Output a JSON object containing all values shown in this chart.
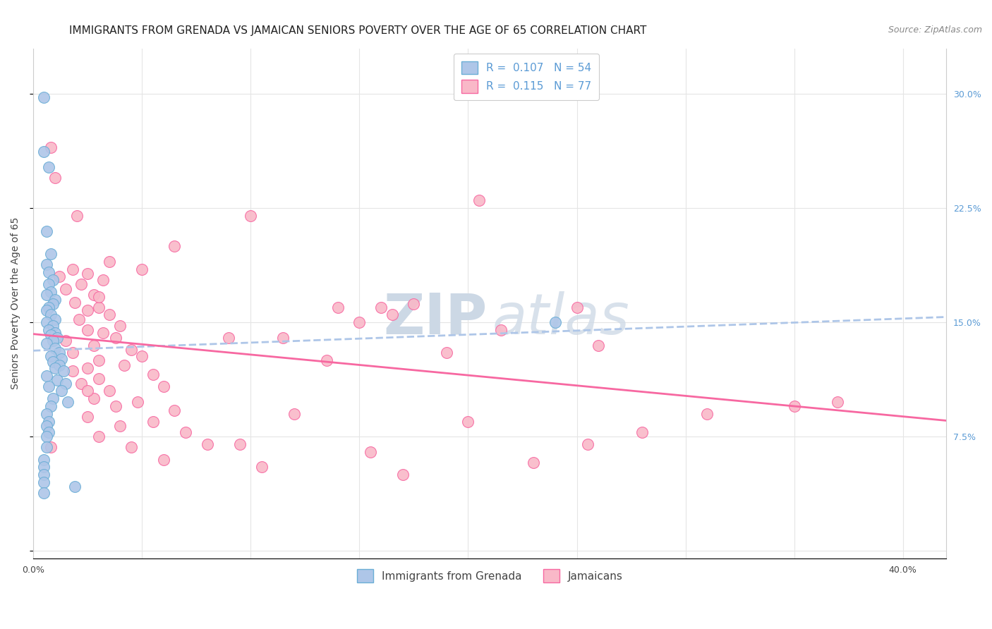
{
  "title": "IMMIGRANTS FROM GRENADA VS JAMAICAN SENIORS POVERTY OVER THE AGE OF 65 CORRELATION CHART",
  "source": "Source: ZipAtlas.com",
  "ylabel": "Seniors Poverty Over the Age of 65",
  "y_tick_vals": [
    0.0,
    0.075,
    0.15,
    0.225,
    0.3
  ],
  "y_tick_labels": [
    "",
    "7.5%",
    "15.0%",
    "22.5%",
    "30.0%"
  ],
  "x_tick_vals": [
    0.0,
    0.05,
    0.1,
    0.15,
    0.2,
    0.25,
    0.3,
    0.35,
    0.4
  ],
  "xlim": [
    0.0,
    0.42
  ],
  "ylim": [
    -0.005,
    0.33
  ],
  "grenada_color": "#aec6e8",
  "grenada_edge": "#6baed6",
  "jamaican_color": "#f9b8c8",
  "jamaican_edge": "#f768a1",
  "grenada_trend_color": "#aec6e8",
  "jamaican_trend_color": "#f768a1",
  "R_grenada": 0.107,
  "N_grenada": 54,
  "R_jamaican": 0.115,
  "N_jamaican": 77,
  "background_color": "#ffffff",
  "grid_color": "#e5e5e5",
  "watermark_color": "#ccd8e5",
  "title_fontsize": 11,
  "ylabel_fontsize": 10,
  "tick_fontsize": 9,
  "legend_fontsize": 11,
  "source_fontsize": 9,
  "scatter_size": 130,
  "grenada_x": [
    0.005,
    0.005,
    0.007,
    0.006,
    0.008,
    0.006,
    0.007,
    0.009,
    0.007,
    0.008,
    0.006,
    0.01,
    0.009,
    0.007,
    0.006,
    0.008,
    0.01,
    0.006,
    0.009,
    0.007,
    0.01,
    0.008,
    0.011,
    0.009,
    0.006,
    0.01,
    0.012,
    0.008,
    0.013,
    0.009,
    0.012,
    0.01,
    0.014,
    0.006,
    0.011,
    0.015,
    0.007,
    0.013,
    0.009,
    0.016,
    0.008,
    0.006,
    0.007,
    0.006,
    0.007,
    0.006,
    0.006,
    0.005,
    0.005,
    0.005,
    0.005,
    0.019,
    0.005,
    0.24
  ],
  "grenada_y": [
    0.298,
    0.262,
    0.252,
    0.21,
    0.195,
    0.188,
    0.183,
    0.178,
    0.175,
    0.17,
    0.168,
    0.165,
    0.162,
    0.16,
    0.158,
    0.155,
    0.152,
    0.15,
    0.148,
    0.145,
    0.143,
    0.142,
    0.14,
    0.138,
    0.136,
    0.133,
    0.13,
    0.128,
    0.126,
    0.124,
    0.122,
    0.12,
    0.118,
    0.115,
    0.112,
    0.11,
    0.108,
    0.105,
    0.1,
    0.098,
    0.095,
    0.09,
    0.085,
    0.082,
    0.078,
    0.075,
    0.068,
    0.06,
    0.055,
    0.05,
    0.045,
    0.042,
    0.038,
    0.15
  ],
  "jamaican_x": [
    0.008,
    0.01,
    0.02,
    0.065,
    0.035,
    0.018,
    0.025,
    0.012,
    0.032,
    0.022,
    0.015,
    0.028,
    0.019,
    0.03,
    0.025,
    0.035,
    0.021,
    0.04,
    0.025,
    0.032,
    0.038,
    0.015,
    0.028,
    0.045,
    0.018,
    0.05,
    0.03,
    0.042,
    0.025,
    0.018,
    0.055,
    0.03,
    0.022,
    0.06,
    0.035,
    0.028,
    0.048,
    0.038,
    0.065,
    0.025,
    0.055,
    0.04,
    0.07,
    0.03,
    0.08,
    0.155,
    0.06,
    0.23,
    0.28,
    0.2,
    0.045,
    0.35,
    0.095,
    0.105,
    0.17,
    0.255,
    0.12,
    0.135,
    0.19,
    0.215,
    0.15,
    0.165,
    0.14,
    0.16,
    0.175,
    0.25,
    0.09,
    0.115,
    0.205,
    0.26,
    0.31,
    0.37,
    0.1,
    0.025,
    0.05,
    0.03,
    0.008
  ],
  "jamaican_y": [
    0.265,
    0.245,
    0.22,
    0.2,
    0.19,
    0.185,
    0.182,
    0.18,
    0.178,
    0.175,
    0.172,
    0.168,
    0.163,
    0.16,
    0.158,
    0.155,
    0.152,
    0.148,
    0.145,
    0.143,
    0.14,
    0.138,
    0.135,
    0.132,
    0.13,
    0.128,
    0.125,
    0.122,
    0.12,
    0.118,
    0.116,
    0.113,
    0.11,
    0.108,
    0.105,
    0.1,
    0.098,
    0.095,
    0.092,
    0.088,
    0.085,
    0.082,
    0.078,
    0.075,
    0.07,
    0.065,
    0.06,
    0.058,
    0.078,
    0.085,
    0.068,
    0.095,
    0.07,
    0.055,
    0.05,
    0.07,
    0.09,
    0.125,
    0.13,
    0.145,
    0.15,
    0.155,
    0.16,
    0.16,
    0.162,
    0.16,
    0.14,
    0.14,
    0.23,
    0.135,
    0.09,
    0.098,
    0.22,
    0.105,
    0.185,
    0.167,
    0.068
  ]
}
